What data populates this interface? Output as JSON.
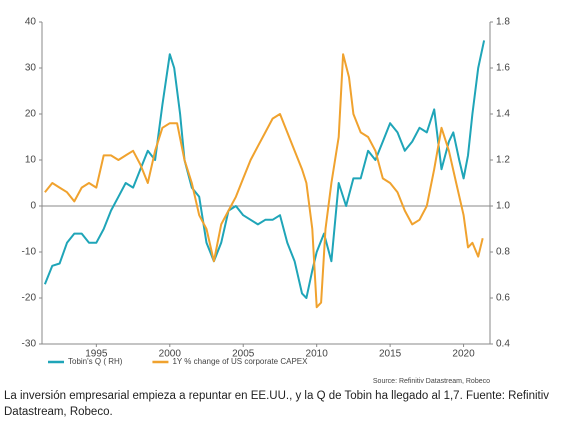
{
  "chart_data": {
    "type": "line",
    "xlim": [
      1991.3,
      2021.8
    ],
    "xticks": [
      1995,
      2000,
      2005,
      2010,
      2015,
      2020
    ],
    "ylim": [
      -30,
      40
    ],
    "yticks": [
      -30,
      -20,
      -10,
      0,
      10,
      20,
      30,
      40
    ],
    "y2lim": [
      0.4,
      1.8
    ],
    "y2ticks": [
      0.4,
      0.6,
      0.8,
      {
        "value": 1.0,
        "label": "1.0"
      },
      1.2,
      1.4,
      1.6,
      1.8
    ],
    "reference_line": 0,
    "legend": "bottom",
    "source": "Source: Refinitiv Datastream, Robeco",
    "caption": "La inversión empresarial empieza a repuntar en EE.UU., y la Q de Tobin ha llegado al 1,7. Fuente: Refinitiv Datastream, Robeco.",
    "series": [
      {
        "name": "Tobin's Q ( RH)",
        "color": "#1fa5b8",
        "axis": "y2",
        "x": [
          1991.5,
          1992,
          1992.5,
          1993,
          1993.5,
          1994,
          1994.5,
          1995,
          1995.5,
          1996,
          1996.5,
          1997,
          1997.5,
          1998,
          1998.5,
          1999,
          1999.5,
          2000,
          2000.3,
          2000.7,
          2001,
          2001.5,
          2002,
          2002.5,
          2003,
          2003.5,
          2004,
          2004.5,
          2005,
          2005.5,
          2006,
          2006.5,
          2007,
          2007.5,
          2008,
          2008.5,
          2009,
          2009.3,
          2009.7,
          2010,
          2010.5,
          2011,
          2011.5,
          2012,
          2012.5,
          2013,
          2013.5,
          2014,
          2014.5,
          2015,
          2015.5,
          2016,
          2016.5,
          2017,
          2017.5,
          2018,
          2018.5,
          2019,
          2019.3,
          2019.7,
          2020,
          2020.3,
          2020.6,
          2021,
          2021.4
        ],
        "values": [
          0.66,
          0.74,
          0.75,
          0.84,
          0.88,
          0.88,
          0.84,
          0.84,
          0.9,
          0.98,
          1.04,
          1.1,
          1.08,
          1.16,
          1.24,
          1.2,
          1.44,
          1.66,
          1.6,
          1.4,
          1.2,
          1.08,
          1.04,
          0.84,
          0.76,
          0.84,
          0.98,
          1.0,
          0.96,
          0.94,
          0.92,
          0.94,
          0.94,
          0.96,
          0.84,
          0.76,
          0.62,
          0.6,
          0.72,
          0.8,
          0.88,
          0.76,
          1.1,
          1.0,
          1.12,
          1.12,
          1.24,
          1.2,
          1.28,
          1.36,
          1.32,
          1.24,
          1.28,
          1.34,
          1.32,
          1.42,
          1.16,
          1.28,
          1.32,
          1.2,
          1.12,
          1.22,
          1.4,
          1.6,
          1.72
        ]
      },
      {
        "name": "1Y % change of US corporate CAPEX",
        "color": "#f0a22e",
        "x": [
          1991.5,
          1992,
          1992.5,
          1993,
          1993.5,
          1994,
          1994.5,
          1995,
          1995.5,
          1996,
          1996.5,
          1997,
          1997.5,
          1998,
          1998.5,
          1999,
          1999.5,
          2000,
          2000.5,
          2001,
          2001.5,
          2002,
          2002.5,
          2003,
          2003.5,
          2004,
          2004.5,
          2005,
          2005.5,
          2006,
          2006.5,
          2007,
          2007.5,
          2008,
          2008.5,
          2009,
          2009.3,
          2009.7,
          2010,
          2010.3,
          2010.6,
          2011,
          2011.5,
          2011.8,
          2012.2,
          2012.5,
          2013,
          2013.5,
          2014,
          2014.5,
          2015,
          2015.5,
          2016,
          2016.5,
          2017,
          2017.5,
          2018,
          2018.5,
          2019,
          2019.5,
          2020,
          2020.3,
          2020.6,
          2021,
          2021.3
        ],
        "values": [
          3,
          5,
          4,
          3,
          1,
          4,
          5,
          4,
          11,
          11,
          10,
          11,
          12,
          9,
          5,
          12,
          17,
          18,
          18,
          10,
          5,
          -2,
          -5,
          -12,
          -4,
          -1,
          2,
          6,
          10,
          13,
          16,
          19,
          20,
          16,
          12,
          8,
          5,
          -5,
          -22,
          -21,
          -5,
          5,
          15,
          33,
          28,
          20,
          16,
          15,
          12,
          6,
          5,
          3,
          -1,
          -4,
          -3,
          0,
          8,
          17,
          12,
          5,
          -2,
          -9,
          -8,
          -11,
          -7
        ]
      }
    ]
  }
}
